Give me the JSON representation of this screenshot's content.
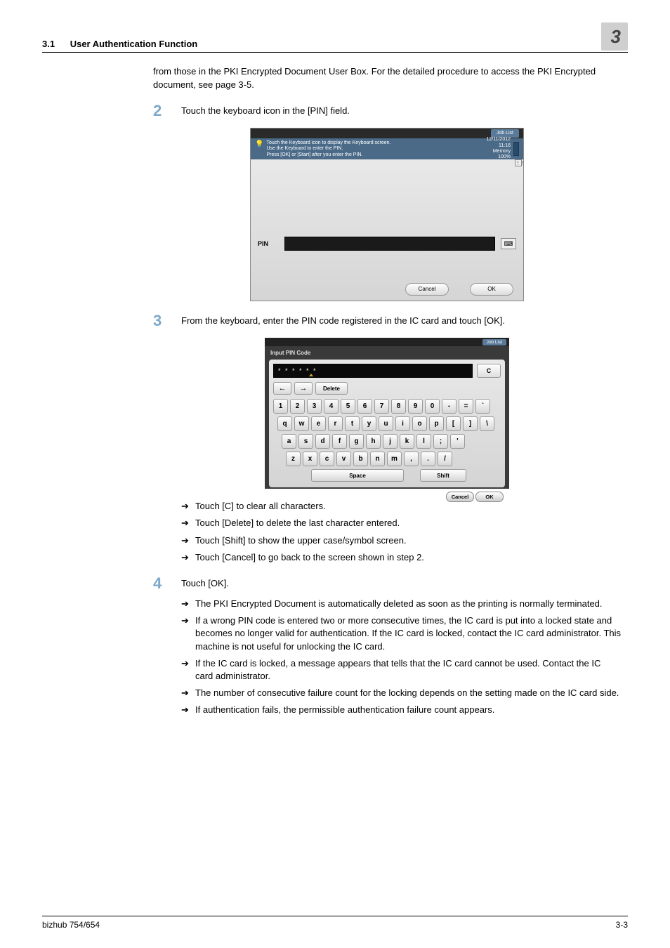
{
  "header": {
    "section_number": "3.1",
    "section_title": "User Authentication Function",
    "chapter_number": "3"
  },
  "intro_paragraph": "from those in the PKI Encrypted Document User Box. For the detailed procedure to access the PKI Encrypted document, see page 3-5.",
  "steps": {
    "s2": {
      "num": "2",
      "text": "Touch the keyboard icon in the [PIN] field."
    },
    "s3": {
      "num": "3",
      "text": "From the keyboard, enter the PIN code registered in the IC card and touch [OK]."
    },
    "s4": {
      "num": "4",
      "text": "Touch [OK]."
    }
  },
  "screenshot1": {
    "job_list": "Job List",
    "hint_line1": "Touch the Keyboard icon to display the Keyboard screen.",
    "hint_line2": "Use the Keyboard to enter the PIN.",
    "hint_line3": "Press [OK] or [Start] after you enter the PIN.",
    "date": "12/11/2012",
    "time": "11:16",
    "memory_label": "Memory",
    "memory_value": "100%",
    "pin_label": "PIN",
    "cancel": "Cancel",
    "ok": "OK"
  },
  "screenshot2": {
    "job_list": "Job List",
    "title": "Input PIN Code",
    "masked": "* * * * * *",
    "c": "C",
    "left": "←",
    "right": "→",
    "delete": "Delete",
    "row_num": [
      "1",
      "2",
      "3",
      "4",
      "5",
      "6",
      "7",
      "8",
      "9",
      "0",
      "-",
      "=",
      "`"
    ],
    "row_q": [
      "q",
      "w",
      "e",
      "r",
      "t",
      "y",
      "u",
      "i",
      "o",
      "p",
      "[",
      "]",
      "\\"
    ],
    "row_a": [
      "a",
      "s",
      "d",
      "f",
      "g",
      "h",
      "j",
      "k",
      "l",
      ";",
      "'"
    ],
    "row_z": [
      "z",
      "x",
      "c",
      "v",
      "b",
      "n",
      "m",
      ",",
      ".",
      "/"
    ],
    "space": "Space",
    "shift": "Shift",
    "cancel": "Cancel",
    "ok": "OK"
  },
  "bullets_after_s3": [
    "Touch [C] to clear all characters.",
    "Touch [Delete] to delete the last character entered.",
    "Touch [Shift] to show the upper case/symbol screen.",
    "Touch [Cancel] to go back to the screen shown in step 2."
  ],
  "bullets_after_s4": [
    "The PKI Encrypted Document is automatically deleted as soon as the printing is normally terminated.",
    "If a wrong PIN code is entered two or more consecutive times, the IC card is put into a locked state and becomes no longer valid for authentication. If the IC card is locked, contact the IC card administrator. This machine is not useful for unlocking the IC card.",
    "If the IC card is locked, a message appears that tells that the IC card cannot be used. Contact the IC card administrator.",
    "The number of consecutive failure count for the locking depends on the setting made on the IC card side.",
    "If authentication fails, the permissible authentication failure count appears."
  ],
  "footer": {
    "left": "bizhub 754/654",
    "right": "3-3"
  },
  "arrow_glyph": "➔"
}
